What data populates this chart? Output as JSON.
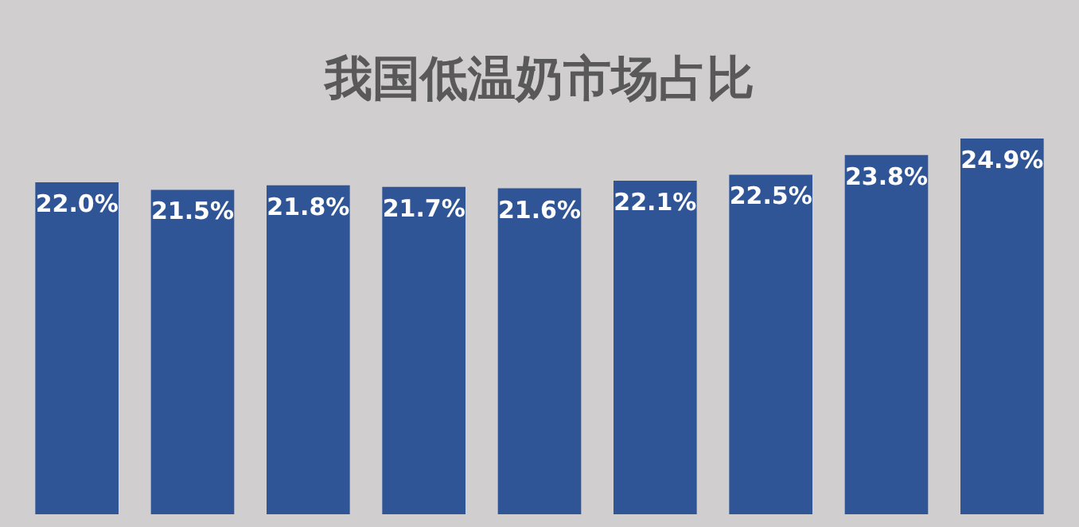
{
  "chart_data": {
    "type": "bar",
    "title": "我国低温奶市场占比",
    "categories": [
      null,
      null,
      null,
      null,
      null,
      null,
      null,
      null,
      null
    ],
    "values": [
      22.0,
      21.5,
      21.8,
      21.7,
      21.6,
      22.1,
      22.5,
      23.8,
      24.9
    ],
    "value_labels": [
      "22.0%",
      "21.5%",
      "21.8%",
      "21.7%",
      "21.6%",
      "22.1%",
      "22.5%",
      "23.8%",
      "24.9%"
    ],
    "color": "#2f5597"
  }
}
